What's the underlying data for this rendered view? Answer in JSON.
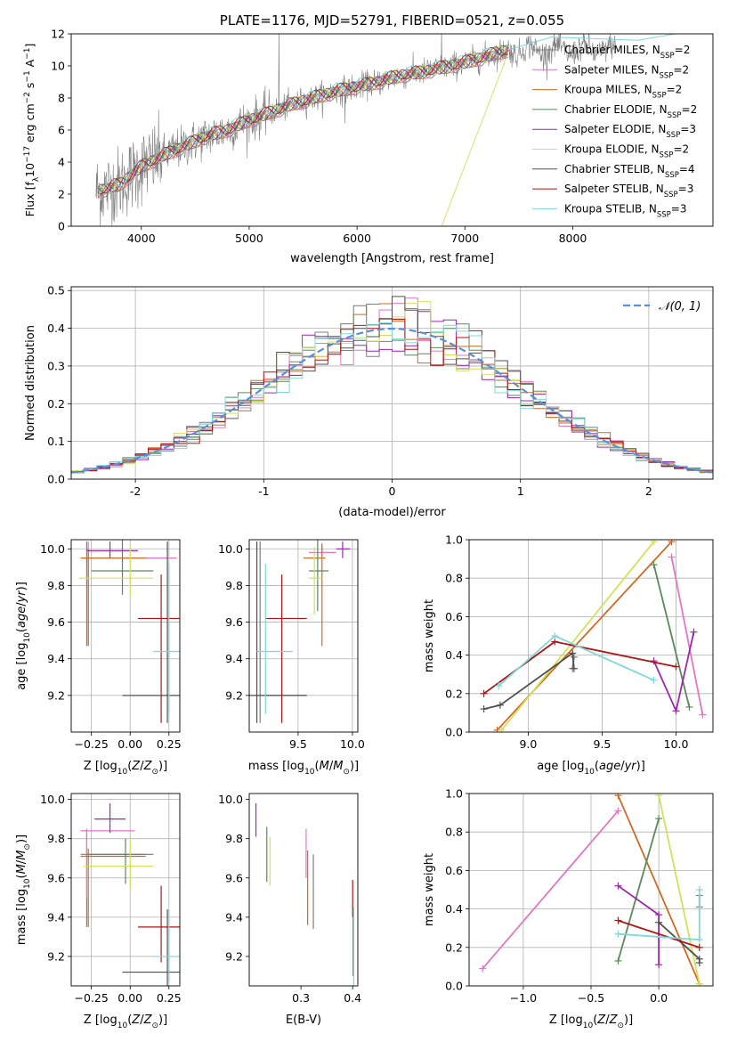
{
  "colors": {
    "Chabrier MILES": "#7f7f7f",
    "Salpeter MILES": "#e377c2",
    "Kroupa MILES": "#d2691e",
    "Chabrier ELODIE": "#5a8a5a",
    "Salpeter ELODIE": "#9c27b0",
    "Kroupa ELODIE": "#d4e157",
    "Chabrier STELIB": "#505050",
    "Salpeter STELIB": "#b01515",
    "Kroupa STELIB": "#7fd8d8",
    "normal": "#5b8fd6",
    "grid": "#b0b0b0",
    "data": "#808080"
  },
  "chart_data": [
    {
      "id": "spectrum",
      "type": "line",
      "title": "PLATE=1176, MJD=52791, FIBERID=0521, z=0.055",
      "xlabel": "wavelength [Angstrom, rest frame]",
      "ylabel": "Flux [fλ10⁻¹⁷ erg cm⁻² s⁻¹ A⁻¹]",
      "xlim": [
        3350,
        9300
      ],
      "ylim": [
        0,
        12
      ],
      "xticks": [
        4000,
        5000,
        6000,
        7000,
        8000
      ],
      "yticks": [
        0,
        2,
        4,
        6,
        8,
        10,
        12
      ],
      "grid": false,
      "legend_position": "right",
      "legend": [
        {
          "label": "Chabrier MILES, N",
          "sub": "SSP",
          "tail": "=2"
        },
        {
          "label": "Salpeter MILES, N",
          "sub": "SSP",
          "tail": "=2"
        },
        {
          "label": "Kroupa MILES, N",
          "sub": "SSP",
          "tail": "=2"
        },
        {
          "label": "Chabrier ELODIE, N",
          "sub": "SSP",
          "tail": "=2"
        },
        {
          "label": "Salpeter ELODIE, N",
          "sub": "SSP",
          "tail": "=3"
        },
        {
          "label": "Kroupa ELODIE, N",
          "sub": "SSP",
          "tail": "=2"
        },
        {
          "label": "Chabrier STELIB, N",
          "sub": "SSP",
          "tail": "=4"
        },
        {
          "label": "Salpeter STELIB, N",
          "sub": "SSP",
          "tail": "=3"
        },
        {
          "label": "Kroupa STELIB, N",
          "sub": "SSP",
          "tail": "=3"
        }
      ],
      "continuum": {
        "x": [
          3600,
          3800,
          4000,
          4200,
          4400,
          4600,
          4800,
          5000,
          5200,
          5400,
          5600,
          5800,
          6000,
          6200,
          6400,
          6600,
          6800,
          7000,
          7200,
          7400
        ],
        "y": [
          2.2,
          2.6,
          3.7,
          4.4,
          5.0,
          5.6,
          6.0,
          6.6,
          7.1,
          7.6,
          8.0,
          8.4,
          8.7,
          9.0,
          9.4,
          9.6,
          9.9,
          10.2,
          10.6,
          11.0
        ]
      }
    },
    {
      "id": "residuals",
      "type": "histogram",
      "xlabel": "(data-model)/error",
      "ylabel": "Normed distribution",
      "xlim": [
        -2.5,
        2.5
      ],
      "ylim": [
        0,
        0.51
      ],
      "xticks": [
        -2,
        -1,
        0,
        1,
        2
      ],
      "yticks": [
        0.0,
        0.1,
        0.2,
        0.3,
        0.4,
        0.5
      ],
      "grid": true,
      "legend_position": "top-right",
      "legend": "𝒩(0, 1)",
      "bin_edges_start": -2.5,
      "bin_width": 0.1
    },
    {
      "id": "age-vs-Z",
      "type": "errorbar",
      "xlabel": "Z [log₁₀(Z/Z⊙)]",
      "ylabel": "age  [log₁₀(age/yr)]",
      "xlim": [
        -0.38,
        0.32
      ],
      "ylim": [
        9.0,
        10.05
      ],
      "xticks": [
        -0.25,
        0.0,
        0.25
      ],
      "xticklabels": [
        "−0.25",
        "0.00",
        "0.25"
      ],
      "yticks": [
        9.2,
        9.4,
        9.6,
        9.8,
        10.0
      ],
      "grid": true
    },
    {
      "id": "age-vs-mass",
      "type": "errorbar",
      "xlabel": "mass [log₁₀(M/M⊙)]",
      "ylabel": "",
      "xlim": [
        9.05,
        10.05
      ],
      "ylim": [
        9.0,
        10.05
      ],
      "xticks": [
        9.5,
        10.0
      ],
      "xticklabels": [
        "9.5",
        "10.0"
      ],
      "yticks": [
        9.2,
        9.4,
        9.6,
        9.8,
        10.0
      ],
      "grid": true
    },
    {
      "id": "weight-vs-age",
      "type": "line",
      "xlabel": "age  [log₁₀(age/yr)]",
      "ylabel": "mass weight",
      "xlim": [
        8.6,
        10.25
      ],
      "ylim": [
        0.0,
        1.0
      ],
      "xticks": [
        9.0,
        9.5,
        10.0
      ],
      "xticklabels": [
        "9.0",
        "9.5",
        "10.0"
      ],
      "yticks": [
        0.0,
        0.2,
        0.4,
        0.6,
        0.8,
        1.0
      ],
      "grid": true,
      "series": [
        {
          "name": "Chabrier MILES",
          "x": [
            9.31,
            9.3
          ],
          "y": [
            0.39,
            0.33
          ]
        },
        {
          "name": "Salpeter MILES",
          "x": [
            9.97,
            10.18
          ],
          "y": [
            0.91,
            0.09
          ]
        },
        {
          "name": "Kroupa MILES",
          "x": [
            8.79,
            9.97
          ],
          "y": [
            0.01,
            0.99
          ]
        },
        {
          "name": "Chabrier ELODIE",
          "x": [
            9.85,
            10.09
          ],
          "y": [
            0.87,
            0.13
          ]
        },
        {
          "name": "Salpeter ELODIE",
          "x": [
            9.85,
            10.0,
            10.12
          ],
          "y": [
            0.37,
            0.11,
            0.52
          ]
        },
        {
          "name": "Kroupa ELODIE",
          "x": [
            8.82,
            9.85
          ],
          "y": [
            0.01,
            0.99
          ]
        },
        {
          "name": "Chabrier STELIB",
          "x": [
            8.7,
            8.81,
            9.3,
            9.31
          ],
          "y": [
            0.12,
            0.14,
            0.41,
            0.33
          ]
        },
        {
          "name": "Salpeter STELIB",
          "x": [
            8.7,
            9.18,
            10.0
          ],
          "y": [
            0.2,
            0.47,
            0.34
          ]
        },
        {
          "name": "Kroupa STELIB",
          "x": [
            8.8,
            9.18,
            9.85
          ],
          "y": [
            0.24,
            0.5,
            0.27
          ]
        }
      ]
    },
    {
      "id": "mass-vs-Z",
      "type": "errorbar",
      "xlabel": "Z [log₁₀(Z/Z⊙)]",
      "ylabel": "mass [log₁₀(M/M⊙)]",
      "xlim": [
        -0.38,
        0.32
      ],
      "ylim": [
        9.05,
        10.03
      ],
      "xticks": [
        -0.25,
        0.0,
        0.25
      ],
      "xticklabels": [
        "−0.25",
        "0.00",
        "0.25"
      ],
      "yticks": [
        9.2,
        9.4,
        9.6,
        9.8,
        10.0
      ],
      "grid": true
    },
    {
      "id": "mass-vs-EBV",
      "type": "errorbar",
      "xlabel": "E(B-V)",
      "ylabel": "",
      "xlim": [
        0.2,
        0.41
      ],
      "ylim": [
        9.05,
        10.03
      ],
      "xticks": [
        0.3,
        0.4
      ],
      "xticklabels": [
        "0.3",
        "0.4"
      ],
      "yticks": [
        9.2,
        9.4,
        9.6,
        9.8,
        10.0
      ],
      "grid": false
    },
    {
      "id": "weight-vs-Z",
      "type": "line",
      "xlabel": "Z [log₁₀(Z/Z⊙)]",
      "ylabel": "mass weight",
      "xlim": [
        -1.4,
        0.4
      ],
      "ylim": [
        0.0,
        1.0
      ],
      "xticks": [
        -1.0,
        -0.5,
        0.0
      ],
      "xticklabels": [
        "−1.0",
        "−0.5",
        "0.0"
      ],
      "yticks": [
        0.0,
        0.2,
        0.4,
        0.6,
        0.8,
        1.0
      ],
      "grid": true,
      "series": [
        {
          "name": "Chabrier MILES",
          "x": [
            0.3,
            0.3
          ],
          "y": [
            0.47,
            0.41
          ]
        },
        {
          "name": "Salpeter MILES",
          "x": [
            -1.3,
            -0.3
          ],
          "y": [
            0.09,
            0.91
          ]
        },
        {
          "name": "Kroupa MILES",
          "x": [
            -0.3,
            0.3
          ],
          "y": [
            0.99,
            0.01
          ]
        },
        {
          "name": "Chabrier ELODIE",
          "x": [
            -0.3,
            0.0
          ],
          "y": [
            0.13,
            0.87
          ]
        },
        {
          "name": "Salpeter ELODIE",
          "x": [
            -0.3,
            0.0,
            0.0
          ],
          "y": [
            0.52,
            0.37,
            0.11
          ]
        },
        {
          "name": "Kroupa ELODIE",
          "x": [
            0.0,
            0.3
          ],
          "y": [
            0.99,
            0.01
          ]
        },
        {
          "name": "Chabrier STELIB",
          "x": [
            0.0,
            0.3,
            0.3
          ],
          "y": [
            0.33,
            0.14,
            0.12
          ]
        },
        {
          "name": "Salpeter STELIB",
          "x": [
            -0.3,
            0.3
          ],
          "y": [
            0.34,
            0.2
          ]
        },
        {
          "name": "Kroupa STELIB",
          "x": [
            -0.3,
            0.3,
            0.3
          ],
          "y": [
            0.27,
            0.24,
            0.5
          ]
        }
      ]
    }
  ],
  "fits": [
    {
      "name": "Chabrier MILES",
      "Z": [
        0.12,
        0.35
      ],
      "Zerr": [
        -0.3,
        0.25
      ],
      "age": [
        9.3,
        10.0
      ],
      "ageerr": [
        9.1,
        10.04
      ],
      "mass": [
        9.35,
        9.7
      ],
      "ebv": 0.325
    },
    {
      "name": "Salpeter MILES",
      "Z": [
        -0.1
      ],
      "Zerr": [
        0.33
      ],
      "age": [
        9.97
      ],
      "ageerr": [
        0.02
      ],
      "mass": [
        9.84
      ],
      "massErr": [
        0.02
      ],
      "ebv": 0.31
    },
    {
      "name": "Kroupa MILES",
      "Z": [
        -0.02
      ],
      "age": [
        9.95
      ],
      "mass": [
        9.72
      ],
      "ebv": 0.314
    },
    {
      "name": "Chabrier ELODIE",
      "Z": [
        -0.05
      ],
      "age": [
        9.87
      ],
      "mass": [
        9.68
      ],
      "ebv": 0.234
    },
    {
      "name": "Salpeter ELODIE",
      "Z": [
        -0.15
      ],
      "age": [
        10.0
      ],
      "mass": [
        9.9
      ],
      "ebv": 0.22
    },
    {
      "name": "Kroupa ELODIE",
      "Z": [
        0.0
      ],
      "age": [
        9.84
      ],
      "mass": [
        9.66
      ],
      "ebv": 0.241
    },
    {
      "name": "Chabrier STELIB",
      "Z": [
        0.18
      ],
      "age": [
        9.2
      ],
      "mass": [
        9.12
      ],
      "ebv": 0.4
    },
    {
      "name": "Salpeter STELIB",
      "Z": [
        0.2
      ],
      "age": [
        9.62
      ],
      "mass": [
        9.35
      ],
      "ebv": 0.405
    },
    {
      "name": "Kroupa STELIB",
      "Z": [
        0.25
      ],
      "age": [
        9.44
      ],
      "mass": [
        9.19
      ],
      "ebv": 0.399
    }
  ],
  "errorbars": {
    "age-vs-Z": [
      {
        "s": "Chabrier MILES",
        "x": -0.28,
        "y": 9.95,
        "xe": [
          -0.32,
          0.3
        ],
        "ye": [
          9.47,
          10.04
        ]
      },
      {
        "s": "Salpeter MILES",
        "x": -0.27,
        "y": 9.95,
        "xe": [
          -0.32,
          0.3
        ],
        "ye": [
          9.47,
          10.04
        ]
      },
      {
        "s": "Kroupa MILES",
        "x": -0.27,
        "y": 9.95,
        "xe": [
          -0.32,
          0.1
        ],
        "ye": [
          9.47,
          10.0
        ]
      },
      {
        "s": "Chabrier ELODIE",
        "x": -0.05,
        "y": 9.88,
        "xe": [
          -0.25,
          0.15
        ],
        "ye": [
          9.75,
          10.08
        ]
      },
      {
        "s": "Salpeter ELODIE",
        "x": -0.13,
        "y": 9.99,
        "xe": [
          -0.28,
          0.05
        ],
        "ye": [
          9.95,
          10.04
        ]
      },
      {
        "s": "Kroupa ELODIE",
        "x": 0.0,
        "y": 9.84,
        "xe": [
          -0.33,
          0.15
        ],
        "ye": [
          9.74,
          10.02
        ]
      },
      {
        "s": "Chabrier STELIB",
        "x": 0.24,
        "y": 9.2,
        "xe": [
          -0.05,
          0.4
        ],
        "ye": [
          9.05,
          10.04
        ]
      },
      {
        "s": "Salpeter STELIB",
        "x": 0.2,
        "y": 9.62,
        "xe": [
          0.05,
          0.35
        ],
        "ye": [
          9.05,
          9.86
        ]
      },
      {
        "s": "Kroupa STELIB",
        "x": 0.25,
        "y": 9.44,
        "xe": [
          0.15,
          0.35
        ],
        "ye": [
          9.1,
          9.92
        ]
      }
    ],
    "age-vs-mass": [
      {
        "s": "Chabrier MILES",
        "x": 9.15,
        "y": 9.2,
        "xe": [
          9.1,
          9.58
        ],
        "ye": [
          9.05,
          10.04
        ]
      },
      {
        "s": "Salpeter MILES",
        "x": 9.72,
        "y": 9.98,
        "xe": [
          9.6,
          9.85
        ],
        "ye": [
          9.96,
          10.02
        ]
      },
      {
        "s": "Kroupa MILES",
        "x": 9.72,
        "y": 9.95,
        "xe": [
          9.55,
          9.75
        ],
        "ye": [
          9.47,
          10.03
        ]
      },
      {
        "s": "Chabrier ELODIE",
        "x": 9.68,
        "y": 9.88,
        "xe": [
          9.6,
          9.78
        ],
        "ye": [
          9.66,
          10.05
        ]
      },
      {
        "s": "Salpeter ELODIE",
        "x": 9.91,
        "y": 10.0,
        "xe": [
          9.85,
          9.98
        ],
        "ye": [
          9.95,
          10.04
        ]
      },
      {
        "s": "Kroupa ELODIE",
        "x": 9.65,
        "y": 9.84,
        "xe": [
          9.6,
          9.72
        ],
        "ye": [
          9.64,
          10.01
        ]
      },
      {
        "s": "Chabrier STELIB",
        "x": 9.12,
        "y": 9.2,
        "xe": [
          9.0,
          9.58
        ],
        "ye": [
          9.05,
          10.04
        ]
      },
      {
        "s": "Salpeter STELIB",
        "x": 9.35,
        "y": 9.62,
        "xe": [
          9.2,
          9.58
        ],
        "ye": [
          9.05,
          9.86
        ]
      },
      {
        "s": "Kroupa STELIB",
        "x": 9.2,
        "y": 9.44,
        "xe": [
          9.12,
          9.45
        ],
        "ye": [
          9.1,
          9.92
        ]
      }
    ],
    "mass-vs-Z": [
      {
        "s": "Chabrier MILES",
        "x": -0.28,
        "y": 9.72,
        "xe": [
          -0.32,
          0.1
        ],
        "ye": [
          9.35,
          9.85
        ]
      },
      {
        "s": "Salpeter MILES",
        "x": -0.28,
        "y": 9.84,
        "xe": [
          -0.32,
          0.03
        ],
        "ye": [
          9.5,
          9.85
        ]
      },
      {
        "s": "Kroupa MILES",
        "x": -0.27,
        "y": 9.71,
        "xe": [
          -0.32,
          0.1
        ],
        "ye": [
          9.35,
          9.75
        ]
      },
      {
        "s": "Chabrier ELODIE",
        "x": -0.03,
        "y": 9.72,
        "xe": [
          -0.28,
          0.15
        ],
        "ye": [
          9.57,
          9.8
        ]
      },
      {
        "s": "Salpeter ELODIE",
        "x": -0.13,
        "y": 9.9,
        "xe": [
          -0.23,
          -0.03
        ],
        "ye": [
          9.83,
          9.98
        ]
      },
      {
        "s": "Kroupa ELODIE",
        "x": 0.0,
        "y": 9.66,
        "xe": [
          -0.3,
          0.15
        ],
        "ye": [
          9.55,
          9.8
        ]
      },
      {
        "s": "Chabrier STELIB",
        "x": 0.24,
        "y": 9.12,
        "xe": [
          -0.05,
          0.4
        ],
        "ye": [
          9.05,
          9.44
        ]
      },
      {
        "s": "Salpeter STELIB",
        "x": 0.2,
        "y": 9.35,
        "xe": [
          0.05,
          0.35
        ],
        "ye": [
          9.17,
          9.56
        ]
      },
      {
        "s": "Kroupa STELIB",
        "x": 0.25,
        "y": 9.2,
        "xe": [
          0.15,
          0.35
        ],
        "ye": [
          9.07,
          9.44
        ]
      }
    ],
    "mass-vs-EBV": [
      {
        "s": "Salpeter ELODIE",
        "x": 0.213,
        "y": 9.9,
        "xe": [
          0.213,
          0.213
        ],
        "ye": [
          9.81,
          9.98
        ]
      },
      {
        "s": "Chabrier ELODIE",
        "x": 0.234,
        "y": 9.72,
        "xe": [
          0.234,
          0.234
        ],
        "ye": [
          9.58,
          9.86
        ]
      },
      {
        "s": "Kroupa ELODIE",
        "x": 0.24,
        "y": 9.66,
        "xe": [
          0.24,
          0.24
        ],
        "ye": [
          9.56,
          9.81
        ]
      },
      {
        "s": "Salpeter MILES",
        "x": 0.31,
        "y": 9.72,
        "xe": [
          0.31,
          0.31
        ],
        "ye": [
          9.6,
          9.85
        ]
      },
      {
        "s": "Kroupa MILES",
        "x": 0.313,
        "y": 9.6,
        "xe": [
          0.313,
          0.313
        ],
        "ye": [
          9.36,
          9.74
        ]
      },
      {
        "s": "Chabrier MILES",
        "x": 0.324,
        "y": 9.5,
        "xe": [
          0.324,
          0.324
        ],
        "ye": [
          9.34,
          9.72
        ]
      },
      {
        "s": "Salpeter STELIB",
        "x": 0.4,
        "y": 9.5,
        "xe": [
          0.4,
          0.4
        ],
        "ye": [
          9.4,
          9.59
        ]
      },
      {
        "s": "Chabrier STELIB",
        "x": 0.401,
        "y": 9.3,
        "xe": [
          0.401,
          0.401
        ],
        "ye": [
          9.1,
          9.45
        ]
      },
      {
        "s": "Kroupa STELIB",
        "x": 0.402,
        "y": 9.2,
        "xe": [
          0.402,
          0.402
        ],
        "ye": [
          9.05,
          9.45
        ]
      }
    ]
  }
}
